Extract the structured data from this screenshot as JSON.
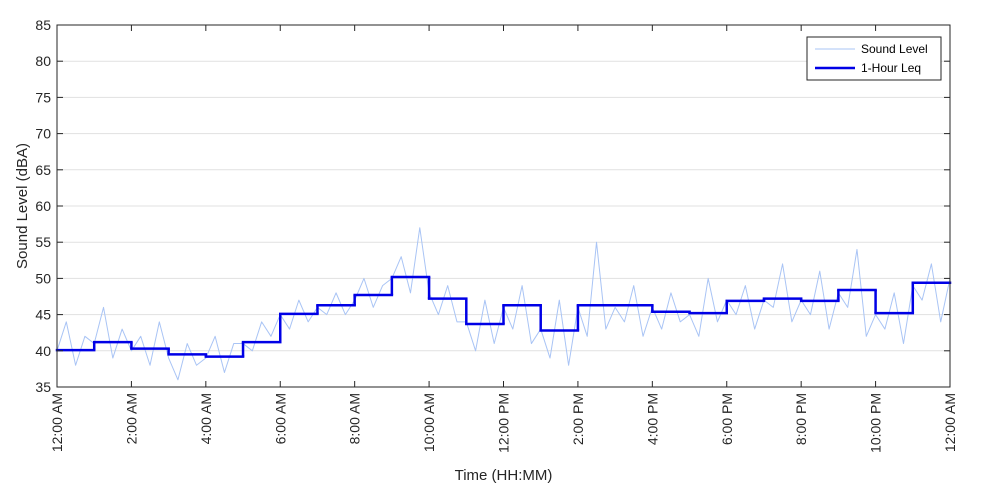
{
  "chart_data": {
    "type": "line",
    "title": "",
    "xlabel": "Time (HH:MM)",
    "ylabel": "Sound Level (dBA)",
    "ylim": [
      35,
      85
    ],
    "yticks": [
      35,
      40,
      45,
      50,
      55,
      60,
      65,
      70,
      75,
      80,
      85
    ],
    "xlim_hours": [
      0,
      24
    ],
    "xtick_hours": [
      0,
      2,
      4,
      6,
      8,
      10,
      12,
      14,
      16,
      18,
      20,
      22,
      24
    ],
    "xtick_labels": [
      "12:00 AM",
      "2:00 AM",
      "4:00 AM",
      "6:00 AM",
      "8:00 AM",
      "10:00 AM",
      "12:00 PM",
      "2:00 PM",
      "4:00 PM",
      "6:00 PM",
      "8:00 PM",
      "10:00 PM",
      "12:00 AM"
    ],
    "grid": "horizontal",
    "legend": "top-right",
    "series": [
      {
        "name": "Sound Level",
        "color": "#a9c4f5",
        "style": "thin",
        "x_hours": [
          0,
          0.25,
          0.5,
          0.75,
          1,
          1.25,
          1.5,
          1.75,
          2,
          2.25,
          2.5,
          2.75,
          3,
          3.25,
          3.5,
          3.75,
          4,
          4.25,
          4.5,
          4.75,
          5,
          5.25,
          5.5,
          5.75,
          6,
          6.25,
          6.5,
          6.75,
          7,
          7.25,
          7.5,
          7.75,
          8,
          8.25,
          8.5,
          8.75,
          9,
          9.25,
          9.5,
          9.75,
          10,
          10.25,
          10.5,
          10.75,
          11,
          11.25,
          11.5,
          11.75,
          12,
          12.25,
          12.5,
          12.75,
          13,
          13.25,
          13.5,
          13.75,
          14,
          14.25,
          14.5,
          14.75,
          15,
          15.25,
          15.5,
          15.75,
          16,
          16.25,
          16.5,
          16.75,
          17,
          17.25,
          17.5,
          17.75,
          18,
          18.25,
          18.5,
          18.75,
          19,
          19.25,
          19.5,
          19.75,
          20,
          20.25,
          20.5,
          20.75,
          21,
          21.25,
          21.5,
          21.75,
          22,
          22.25,
          22.5,
          22.75,
          23,
          23.25,
          23.5,
          23.75,
          24
        ],
        "values": [
          40,
          44,
          38,
          42,
          41,
          46,
          39,
          43,
          40,
          42,
          38,
          44,
          39,
          36,
          41,
          38,
          39,
          42,
          37,
          41,
          41,
          40,
          44,
          42,
          45,
          43,
          47,
          44,
          46,
          45,
          48,
          45,
          47,
          50,
          46,
          49,
          50,
          53,
          48,
          57,
          48,
          45,
          49,
          44,
          44,
          40,
          47,
          41,
          46,
          43,
          49,
          41,
          43,
          39,
          47,
          38,
          46,
          42,
          55,
          43,
          46,
          44,
          49,
          42,
          46,
          43,
          48,
          44,
          45,
          42,
          50,
          44,
          47,
          45,
          49,
          43,
          47,
          46,
          52,
          44,
          47,
          45,
          51,
          43,
          48,
          46,
          54,
          42,
          45,
          43,
          48,
          41,
          49,
          47,
          52,
          44,
          50
        ]
      },
      {
        "name": "1-Hour Leq",
        "color": "#0000e6",
        "style": "step",
        "hours": [
          0,
          1,
          2,
          3,
          4,
          5,
          6,
          7,
          8,
          9,
          10,
          11,
          12,
          13,
          14,
          15,
          16,
          17,
          18,
          19,
          20,
          21,
          22,
          23
        ],
        "values": [
          40.1,
          41.2,
          40.3,
          39.5,
          39.2,
          41.2,
          45.1,
          46.3,
          47.7,
          50.2,
          47.2,
          43.7,
          46.3,
          42.8,
          46.3,
          46.3,
          45.4,
          45.2,
          46.9,
          47.2,
          46.9,
          48.4,
          45.2,
          49.4
        ]
      }
    ]
  }
}
